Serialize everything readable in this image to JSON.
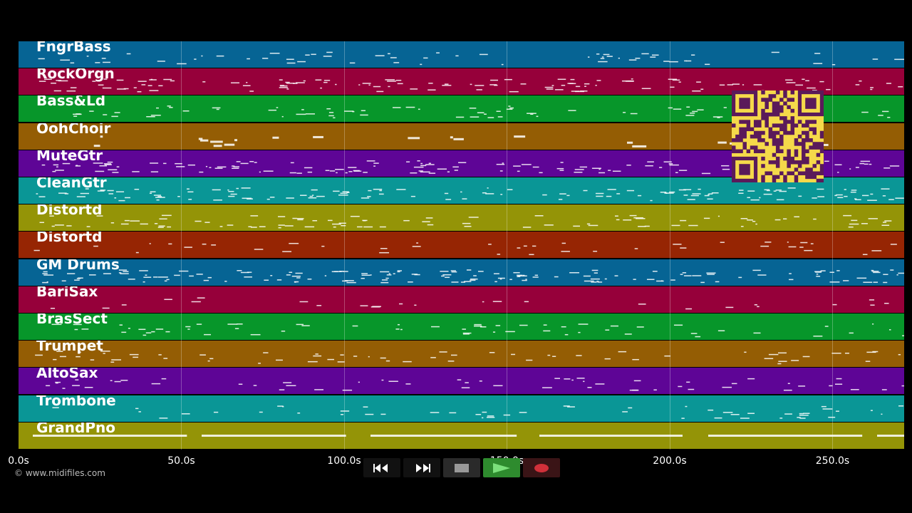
{
  "tracks": [
    {
      "name": "FngrBass",
      "color": "#066494"
    },
    {
      "name": "RockOrgn",
      "color": "#96003a"
    },
    {
      "name": "Bass&Ld",
      "color": "#07962a"
    },
    {
      "name": "OohChoir",
      "color": "#945d04"
    },
    {
      "name": "MuteGtr",
      "color": "#5e0596"
    },
    {
      "name": "CleanGtr",
      "color": "#0a9696"
    },
    {
      "name": "Distortd",
      "color": "#949407"
    },
    {
      "name": "Distortd",
      "color": "#962503"
    },
    {
      "name": "GM Drums",
      "color": "#066494"
    },
    {
      "name": "BariSax",
      "color": "#96003a"
    },
    {
      "name": "BrasSect",
      "color": "#07962a"
    },
    {
      "name": "Trumpet",
      "color": "#945d04"
    },
    {
      "name": "AltoSax",
      "color": "#5e0596"
    },
    {
      "name": "Trombone",
      "color": "#0a9696"
    },
    {
      "name": "GrandPno",
      "color": "#949407"
    }
  ],
  "timeline": {
    "ticks": [
      "0.0s",
      "50.0s",
      "100.0s",
      "150.0s",
      "200.0s",
      "250.0s"
    ],
    "tick_seconds": [
      0,
      50,
      100,
      150,
      200,
      250
    ],
    "duration_seconds": 272
  },
  "copyright": "© www.midifiles.com",
  "qr_code": {
    "icon": "qr-code-icon",
    "color": "#f5d94a",
    "module_color": "#5a1a5a"
  },
  "transport": {
    "rewind": {
      "icon": "rewind-icon"
    },
    "fast_forward": {
      "icon": "fast-forward-icon"
    },
    "stop": {
      "icon": "stop-icon"
    },
    "play": {
      "icon": "play-icon",
      "color": "#2e8b2e"
    },
    "record": {
      "icon": "record-icon",
      "color": "#d0303a"
    }
  }
}
